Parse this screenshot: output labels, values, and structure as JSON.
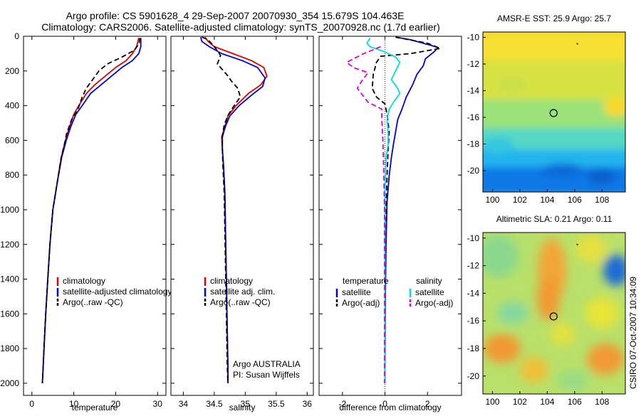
{
  "titles": {
    "line1": "Argo profile: CS 5901628_4 29-Sep-2007 20070930_354 15.679S 104.463E",
    "line2": "Climatology: CARS2006. Satellite-adjusted climatology: synTS_20070928.nc (1.7d earlier)"
  },
  "side_label": "CSIRO 07-Oct-2007 10:34:09",
  "chart_data": [
    {
      "id": "temperature",
      "type": "line",
      "xlabel": "temperature",
      "ylabel": "",
      "xlim": [
        -2,
        32
      ],
      "ylim": [
        2070,
        0
      ],
      "xticks": [
        0,
        10,
        20,
        30
      ],
      "yticks": [
        0,
        200,
        400,
        600,
        800,
        1000,
        1200,
        1400,
        1600,
        1800,
        2000
      ],
      "legend": {
        "position": "lower-left",
        "entries": [
          "climatology",
          "satellite-adjusted climatology",
          "Argo(..raw -QC)"
        ]
      },
      "series": [
        {
          "name": "climatology",
          "color": "#e00000",
          "dash": "solid",
          "points": [
            [
              25.5,
              10
            ],
            [
              25,
              60
            ],
            [
              24,
              100
            ],
            [
              22.5,
              140
            ],
            [
              20,
              180
            ],
            [
              17.5,
              230
            ],
            [
              15,
              280
            ],
            [
              13,
              330
            ],
            [
              11.2,
              400
            ],
            [
              10,
              450
            ],
            [
              9,
              520
            ],
            [
              8,
              600
            ],
            [
              7,
              700
            ],
            [
              6,
              850
            ],
            [
              5,
              1000
            ],
            [
              4.3,
              1200
            ],
            [
              3.8,
              1400
            ],
            [
              3.3,
              1600
            ],
            [
              2.9,
              1800
            ],
            [
              2.6,
              1950
            ],
            [
              2.5,
              2000
            ]
          ]
        },
        {
          "name": "satellite-adjusted climatology",
          "color": "#0000dd",
          "dash": "solid",
          "points": [
            [
              26,
              10
            ],
            [
              26,
              60
            ],
            [
              25.5,
              100
            ],
            [
              24,
              140
            ],
            [
              21.5,
              180
            ],
            [
              19,
              230
            ],
            [
              16.5,
              280
            ],
            [
              14,
              330
            ],
            [
              12,
              400
            ],
            [
              10.5,
              450
            ],
            [
              9.3,
              520
            ],
            [
              8.2,
              600
            ],
            [
              7.1,
              700
            ],
            [
              6,
              850
            ],
            [
              5,
              1000
            ],
            [
              4.3,
              1200
            ],
            [
              3.8,
              1400
            ],
            [
              3.3,
              1600
            ],
            [
              2.9,
              1800
            ],
            [
              2.6,
              1950
            ],
            [
              2.5,
              2000
            ]
          ]
        },
        {
          "name": "Argo(..raw -QC)",
          "color": "#000000",
          "dash": "dashed",
          "points": [
            [
              25.8,
              10
            ],
            [
              25.6,
              40
            ],
            [
              24.5,
              80
            ],
            [
              21.5,
              120
            ],
            [
              18,
              160
            ],
            [
              16,
              200
            ],
            [
              14.5,
              250
            ],
            [
              13,
              300
            ],
            [
              12,
              350
            ],
            [
              11,
              420
            ],
            [
              9.5,
              480
            ],
            [
              8.3,
              560
            ],
            [
              7.8,
              620
            ],
            [
              7,
              700
            ],
            [
              6,
              850
            ],
            [
              5,
              1000
            ],
            [
              4.3,
              1200
            ],
            [
              3.8,
              1400
            ],
            [
              3.3,
              1600
            ],
            [
              2.9,
              1800
            ],
            [
              2.6,
              1950
            ],
            [
              2.5,
              2000
            ]
          ]
        }
      ]
    },
    {
      "id": "salinity",
      "type": "line",
      "xlabel": "salinity",
      "xlim": [
        33.8,
        36.1
      ],
      "ylim": [
        2070,
        0
      ],
      "xticks": [
        34,
        34.5,
        35,
        35.5,
        36
      ],
      "legend": {
        "position": "lower-left",
        "entries": [
          "climatology",
          "satellite adj. clim.",
          "Argo(..raw -QC)"
        ]
      },
      "annotation": [
        "Argo AUSTRALIA",
        "PI: Susan Wijffels"
      ],
      "series": [
        {
          "name": "climatology",
          "color": "#e00000",
          "dash": "solid",
          "points": [
            [
              34.35,
              5
            ],
            [
              34.4,
              30
            ],
            [
              34.5,
              60
            ],
            [
              34.8,
              100
            ],
            [
              35.1,
              140
            ],
            [
              35.3,
              180
            ],
            [
              35.35,
              230
            ],
            [
              35.25,
              280
            ],
            [
              35.05,
              330
            ],
            [
              34.85,
              400
            ],
            [
              34.72,
              460
            ],
            [
              34.67,
              520
            ],
            [
              34.62,
              580
            ],
            [
              34.63,
              650
            ],
            [
              34.65,
              750
            ],
            [
              34.67,
              900
            ],
            [
              34.68,
              1100
            ],
            [
              34.69,
              1300
            ],
            [
              34.7,
              1500
            ],
            [
              34.71,
              1700
            ],
            [
              34.72,
              1900
            ],
            [
              34.72,
              2000
            ]
          ]
        },
        {
          "name": "satellite adj. clim.",
          "color": "#0000dd",
          "dash": "solid",
          "points": [
            [
              34.28,
              5
            ],
            [
              34.3,
              30
            ],
            [
              34.42,
              60
            ],
            [
              34.62,
              100
            ],
            [
              34.95,
              140
            ],
            [
              35.2,
              180
            ],
            [
              35.32,
              240
            ],
            [
              35.28,
              290
            ],
            [
              35.1,
              340
            ],
            [
              34.9,
              400
            ],
            [
              34.75,
              460
            ],
            [
              34.68,
              520
            ],
            [
              34.63,
              580
            ],
            [
              34.63,
              650
            ],
            [
              34.65,
              750
            ],
            [
              34.67,
              900
            ],
            [
              34.68,
              1100
            ],
            [
              34.69,
              1300
            ],
            [
              34.7,
              1500
            ],
            [
              34.71,
              1700
            ],
            [
              34.72,
              1900
            ],
            [
              34.72,
              2000
            ]
          ]
        },
        {
          "name": "Argo(..raw -QC)",
          "color": "#000000",
          "dash": "dashed",
          "points": [
            [
              34.3,
              5
            ],
            [
              34.4,
              20
            ],
            [
              34.5,
              60
            ],
            [
              34.6,
              110
            ],
            [
              34.55,
              160
            ],
            [
              34.7,
              220
            ],
            [
              34.78,
              260
            ],
            [
              34.88,
              300
            ],
            [
              34.92,
              350
            ],
            [
              34.82,
              400
            ],
            [
              34.73,
              450
            ],
            [
              34.66,
              510
            ],
            [
              34.63,
              580
            ],
            [
              34.63,
              650
            ],
            [
              34.64,
              750
            ],
            [
              34.66,
              900
            ],
            [
              34.67,
              1100
            ],
            [
              34.68,
              1300
            ],
            [
              34.69,
              1500
            ],
            [
              34.7,
              1700
            ],
            [
              34.71,
              1900
            ],
            [
              34.72,
              2000
            ]
          ]
        }
      ]
    },
    {
      "id": "difference",
      "type": "line",
      "xlabel": "difference from climatology",
      "xlim": [
        -3.1,
        3.6
      ],
      "ylim": [
        2070,
        0
      ],
      "xticks": [
        -2,
        0,
        2
      ],
      "zero_line": true,
      "legend": {
        "position": "lower-left",
        "columns": [
          {
            "header": "temperature",
            "entries": [
              "satellite",
              "Argo(-adj)"
            ]
          },
          {
            "header": "salinity",
            "entries": [
              "satellite",
              "Argo(-adj)"
            ]
          }
        ]
      },
      "series": [
        {
          "name": "temperature satellite",
          "color": "#0000dd",
          "dash": "solid",
          "points": [
            [
              0.5,
              5
            ],
            [
              1.2,
              20
            ],
            [
              2.1,
              50
            ],
            [
              2.5,
              65
            ],
            [
              2.3,
              90
            ],
            [
              1.9,
              130
            ],
            [
              1.8,
              170
            ],
            [
              1.5,
              220
            ],
            [
              1.3,
              280
            ],
            [
              1,
              350
            ],
            [
              0.8,
              420
            ],
            [
              0.6,
              480
            ],
            [
              0.5,
              550
            ],
            [
              0.4,
              620
            ],
            [
              0.3,
              700
            ],
            [
              0.2,
              800
            ],
            [
              0.1,
              950
            ],
            [
              0.05,
              1200
            ],
            [
              0.02,
              1500
            ],
            [
              0,
              2000
            ]
          ]
        },
        {
          "name": "temperature Argo(-adj)",
          "color": "#000000",
          "dash": "dashed",
          "points": [
            [
              0.5,
              5
            ],
            [
              2,
              40
            ],
            [
              2.6,
              70
            ],
            [
              1.2,
              100
            ],
            [
              -0.2,
              115
            ],
            [
              -0.4,
              150
            ],
            [
              -0.55,
              220
            ],
            [
              -0.6,
              300
            ],
            [
              -0.4,
              350
            ],
            [
              0,
              390
            ],
            [
              0.1,
              450
            ],
            [
              0.2,
              550
            ],
            [
              0.15,
              650
            ],
            [
              0.1,
              800
            ],
            [
              0.05,
              1000
            ],
            [
              0.02,
              1300
            ],
            [
              0,
              1600
            ],
            [
              0,
              2000
            ]
          ]
        },
        {
          "name": "salinity satellite",
          "color": "#00dddd",
          "dash": "solid",
          "points": [
            [
              -0.7,
              10
            ],
            [
              -0.85,
              40
            ],
            [
              -0.7,
              60
            ],
            [
              0,
              90
            ],
            [
              0.5,
              120
            ],
            [
              0.7,
              150
            ],
            [
              0.5,
              200
            ],
            [
              0.3,
              250
            ],
            [
              0.6,
              300
            ],
            [
              0.7,
              330
            ],
            [
              0.4,
              380
            ],
            [
              0.2,
              420
            ],
            [
              0.1,
              480
            ],
            [
              0.15,
              560
            ],
            [
              0.15,
              620
            ],
            [
              0.05,
              700
            ],
            [
              0,
              900
            ],
            [
              0,
              1100
            ],
            [
              0,
              1400
            ],
            [
              0,
              1700
            ],
            [
              0,
              2000
            ]
          ]
        },
        {
          "name": "salinity Argo(-adj)",
          "color": "#dd00dd",
          "dash": "dashed",
          "points": [
            [
              -0.2,
              60
            ],
            [
              -1,
              100
            ],
            [
              -1.8,
              150
            ],
            [
              -1.5,
              180
            ],
            [
              -0.8,
              210
            ],
            [
              -1.1,
              260
            ],
            [
              -1.3,
              300
            ],
            [
              -0.8,
              380
            ],
            [
              -0.15,
              420
            ],
            [
              -0.15,
              480
            ],
            [
              -0.1,
              600
            ],
            [
              -0.05,
              800
            ],
            [
              -0.02,
              1000
            ],
            [
              -0.02,
              1300
            ],
            [
              -0.02,
              1600
            ],
            [
              -0.02,
              1800
            ],
            [
              -0.02,
              2000
            ]
          ]
        }
      ]
    },
    {
      "id": "sst_map",
      "type": "heatmap",
      "title": "AMSR-E SST: 25.9 Argo: 25.7",
      "xlim": [
        99.3,
        109.7
      ],
      "ylim": [
        -21.6,
        -9.6
      ],
      "xticks": [
        100,
        102,
        104,
        106,
        108
      ],
      "yticks": [
        -10,
        -12,
        -14,
        -16,
        -18,
        -20
      ],
      "float_position": [
        104.463,
        -15.679
      ],
      "marker": [
        106.2,
        -10.5
      ]
    },
    {
      "id": "sla_map",
      "type": "heatmap",
      "title": "Altimetric SLA: 0.21 Argo: 0.11",
      "xlim": [
        99.3,
        109.7
      ],
      "ylim": [
        -21.3,
        -9.6
      ],
      "xticks": [
        100,
        102,
        104,
        106,
        108
      ],
      "yticks": [
        -10,
        -12,
        -14,
        -16,
        -18,
        -20
      ],
      "float_position": [
        104.463,
        -15.679
      ],
      "marker": [
        106.2,
        -10.5
      ]
    }
  ]
}
